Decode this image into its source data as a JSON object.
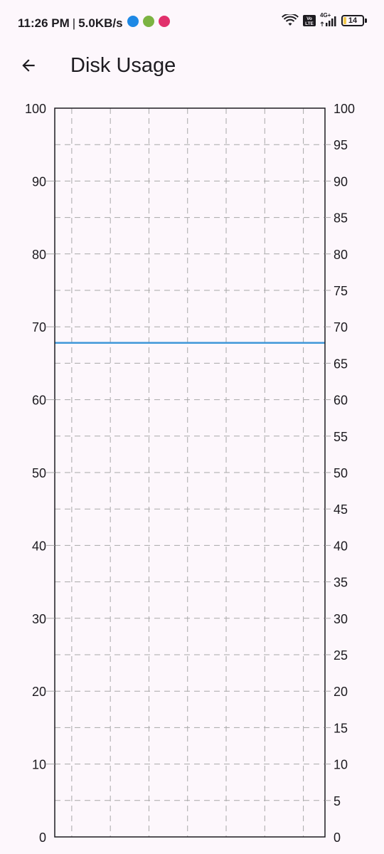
{
  "status_bar": {
    "time": "11:26 PM",
    "separator": "|",
    "net_speed": "5.0KB/s",
    "notification_icons": [
      {
        "name": "messages-icon",
        "color": "#1e88e5"
      },
      {
        "name": "app-icon",
        "color": "#7cb342"
      },
      {
        "name": "instagram-icon",
        "color": "#e1306c"
      }
    ],
    "network_type": "4G+",
    "volte": "Vo LTE",
    "battery_level": "14",
    "battery_percent": 14
  },
  "app_bar": {
    "title": "Disk Usage",
    "back_icon": "arrow-back-icon"
  },
  "colors": {
    "background": "#fdf7fc",
    "line": "#3f97d9",
    "grid": "#a8a8a8",
    "border": "#1d1b20"
  },
  "chart_data": {
    "type": "line",
    "title": "",
    "xlabel": "",
    "ylabel": "",
    "ylim": [
      0,
      100
    ],
    "left_axis_ticks": [
      0,
      10,
      20,
      30,
      40,
      50,
      60,
      70,
      80,
      90,
      100
    ],
    "right_axis_ticks": [
      0,
      5,
      10,
      15,
      20,
      25,
      30,
      35,
      40,
      45,
      50,
      55,
      60,
      65,
      70,
      75,
      80,
      85,
      90,
      95,
      100
    ],
    "grid": true,
    "grid_style": "dashed",
    "vertical_grid_lines": 7,
    "series": [
      {
        "color": "#3f97d9",
        "values": [
          67.8,
          67.8
        ]
      }
    ]
  }
}
